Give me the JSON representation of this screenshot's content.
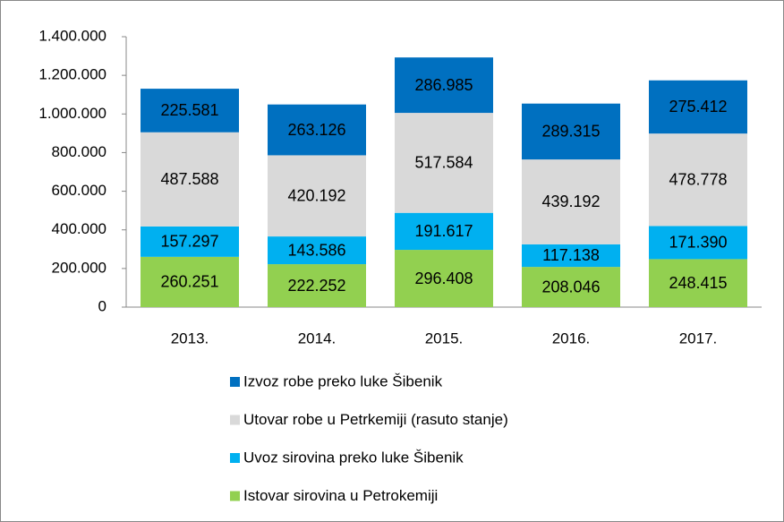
{
  "chart_data": {
    "type": "stacked_bar",
    "categories": [
      "2013.",
      "2014.",
      "2015.",
      "2016.",
      "2017."
    ],
    "series": [
      {
        "name": "Istovar sirovina u Petrokemiji",
        "color": "#92d050",
        "values": [
          260251,
          222252,
          296408,
          208046,
          248415
        ],
        "value_labels": [
          "260.251",
          "222.252",
          "296.408",
          "208.046",
          "248.415"
        ]
      },
      {
        "name": "Uvoz sirovina preko luke Šibenik",
        "color": "#00b0f0",
        "values": [
          157297,
          143586,
          191617,
          117138,
          171390
        ],
        "value_labels": [
          "157.297",
          "143.586",
          "191.617",
          "117.138",
          "171.390"
        ]
      },
      {
        "name": "Utovar robe u Petrkemiji (rasuto stanje)",
        "color": "#d9d9d9",
        "values": [
          487588,
          420192,
          517584,
          439192,
          478778
        ],
        "value_labels": [
          "487.588",
          "420.192",
          "517.584",
          "439.192",
          "478.778"
        ]
      },
      {
        "name": "Izvoz robe preko luke Šibenik",
        "color": "#0070c0",
        "values": [
          225581,
          263126,
          286985,
          289315,
          275412
        ],
        "value_labels": [
          "225.581",
          "263.126",
          "286.985",
          "289.315",
          "275.412"
        ]
      }
    ],
    "ylim": [
      0,
      1400000
    ],
    "yticks": [
      0,
      {
        "value": 200000,
        "label": "200.000"
      },
      {
        "value": 400000,
        "label": "400.000"
      },
      {
        "value": 600000,
        "label": "600.000"
      },
      {
        "value": 800000,
        "label": "800.000"
      },
      {
        "value": 1000000,
        "label": "1.000.000"
      },
      {
        "value": 1200000,
        "label": "1.200.000"
      },
      {
        "value": 1400000,
        "label": "1.400.000"
      }
    ],
    "legend": "bottom",
    "legend_order": "reversed",
    "grid": false
  }
}
